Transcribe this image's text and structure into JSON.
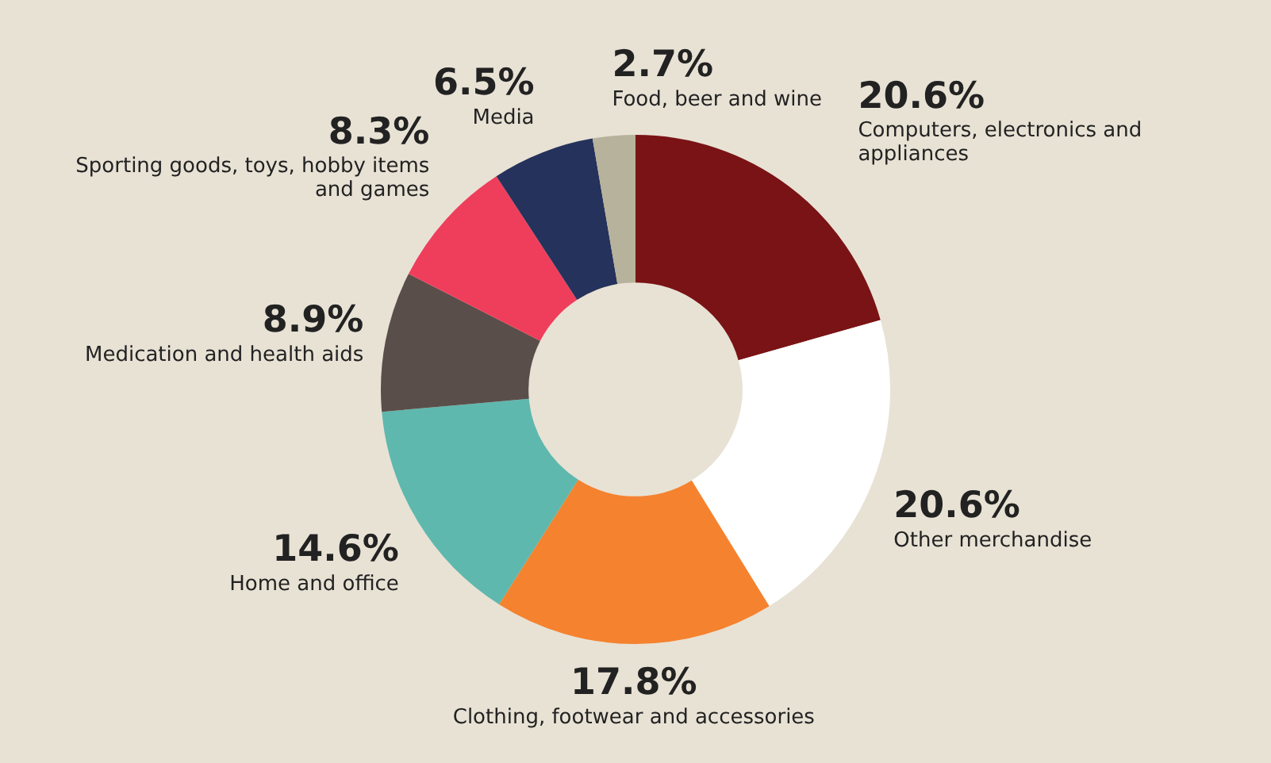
{
  "chart_data": {
    "type": "donut",
    "categories": [
      "Computers, electronics and appliances",
      "Other merchandise",
      "Clothing, footwear and accessories",
      "Home and office",
      "Medication and health aids",
      "Sporting goods, toys, hobby items and games",
      "Media",
      "Food, beer and wine"
    ],
    "values": [
      20.6,
      20.6,
      17.8,
      14.6,
      8.9,
      8.3,
      6.5,
      2.7
    ],
    "colors": [
      "#7a1315",
      "#ffffff",
      "#f5822f",
      "#5fb8ad",
      "#5a4e4b",
      "#ef3e5b",
      "#25325b",
      "#b7b29c"
    ],
    "value_labels": [
      "20.6%",
      "20.6%",
      "17.8%",
      "14.6%",
      "8.9%",
      "8.3%",
      "6.5%",
      "2.7%"
    ],
    "legend": false
  }
}
